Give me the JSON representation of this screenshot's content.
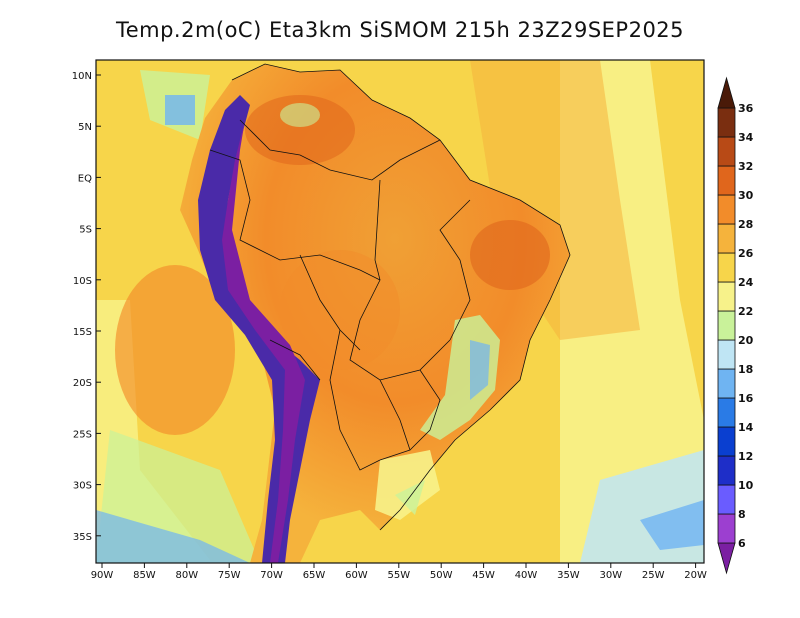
{
  "title": "Temp.2m(oC) Eta3km SiSMOM 215h 23Z29SEP2025",
  "lat_labels": [
    "10N",
    "5N",
    "EQ",
    "5S",
    "10S",
    "15S",
    "20S",
    "25S",
    "30S",
    "35S"
  ],
  "lon_labels": [
    "90W",
    "85W",
    "80W",
    "75W",
    "70W",
    "65W",
    "60W",
    "55W",
    "50W",
    "45W",
    "40W",
    "35W",
    "30W",
    "25W",
    "20W"
  ],
  "colorbar": {
    "labels": [
      "6",
      "8",
      "10",
      "12",
      "14",
      "16",
      "18",
      "20",
      "22",
      "24",
      "26",
      "28",
      "30",
      "32",
      "34",
      "36"
    ],
    "colors": [
      "#7b1fa2",
      "#9c3fd0",
      "#6a5cff",
      "#1e2ec8",
      "#0a3fd0",
      "#2a7be6",
      "#6fb4f2",
      "#bfe5f4",
      "#c9f29a",
      "#f7f28a",
      "#f7d54a",
      "#f5b33c",
      "#f28c2a",
      "#e0661c",
      "#b84a16",
      "#7a2e10",
      "#4a1a08"
    ]
  }
}
